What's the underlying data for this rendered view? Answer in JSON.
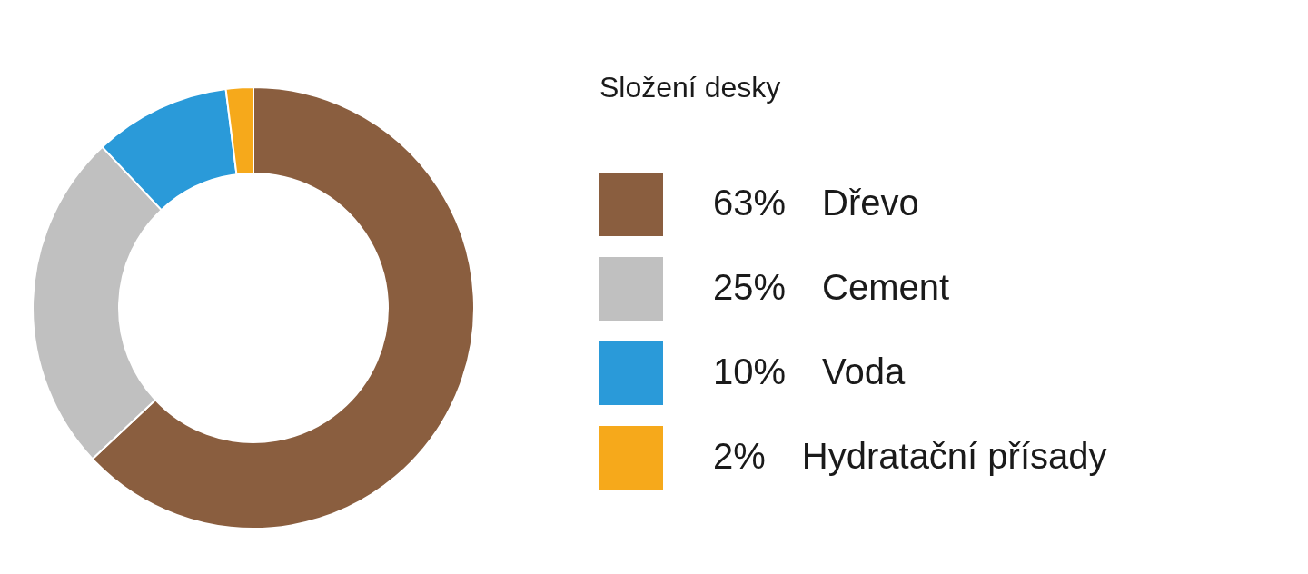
{
  "chart_data": {
    "type": "donut",
    "legend_title": "Složení desky",
    "categories": [
      "Dřevo",
      "Cement",
      "Voda",
      "Hydratační přísady"
    ],
    "values": [
      63,
      25,
      10,
      2
    ],
    "colors": [
      "#8a5e3f",
      "#c0c0c0",
      "#2a9ad9",
      "#f6a91b"
    ],
    "value_labels": [
      "63%",
      "25%",
      "10%",
      "2%"
    ],
    "legend": "right"
  }
}
